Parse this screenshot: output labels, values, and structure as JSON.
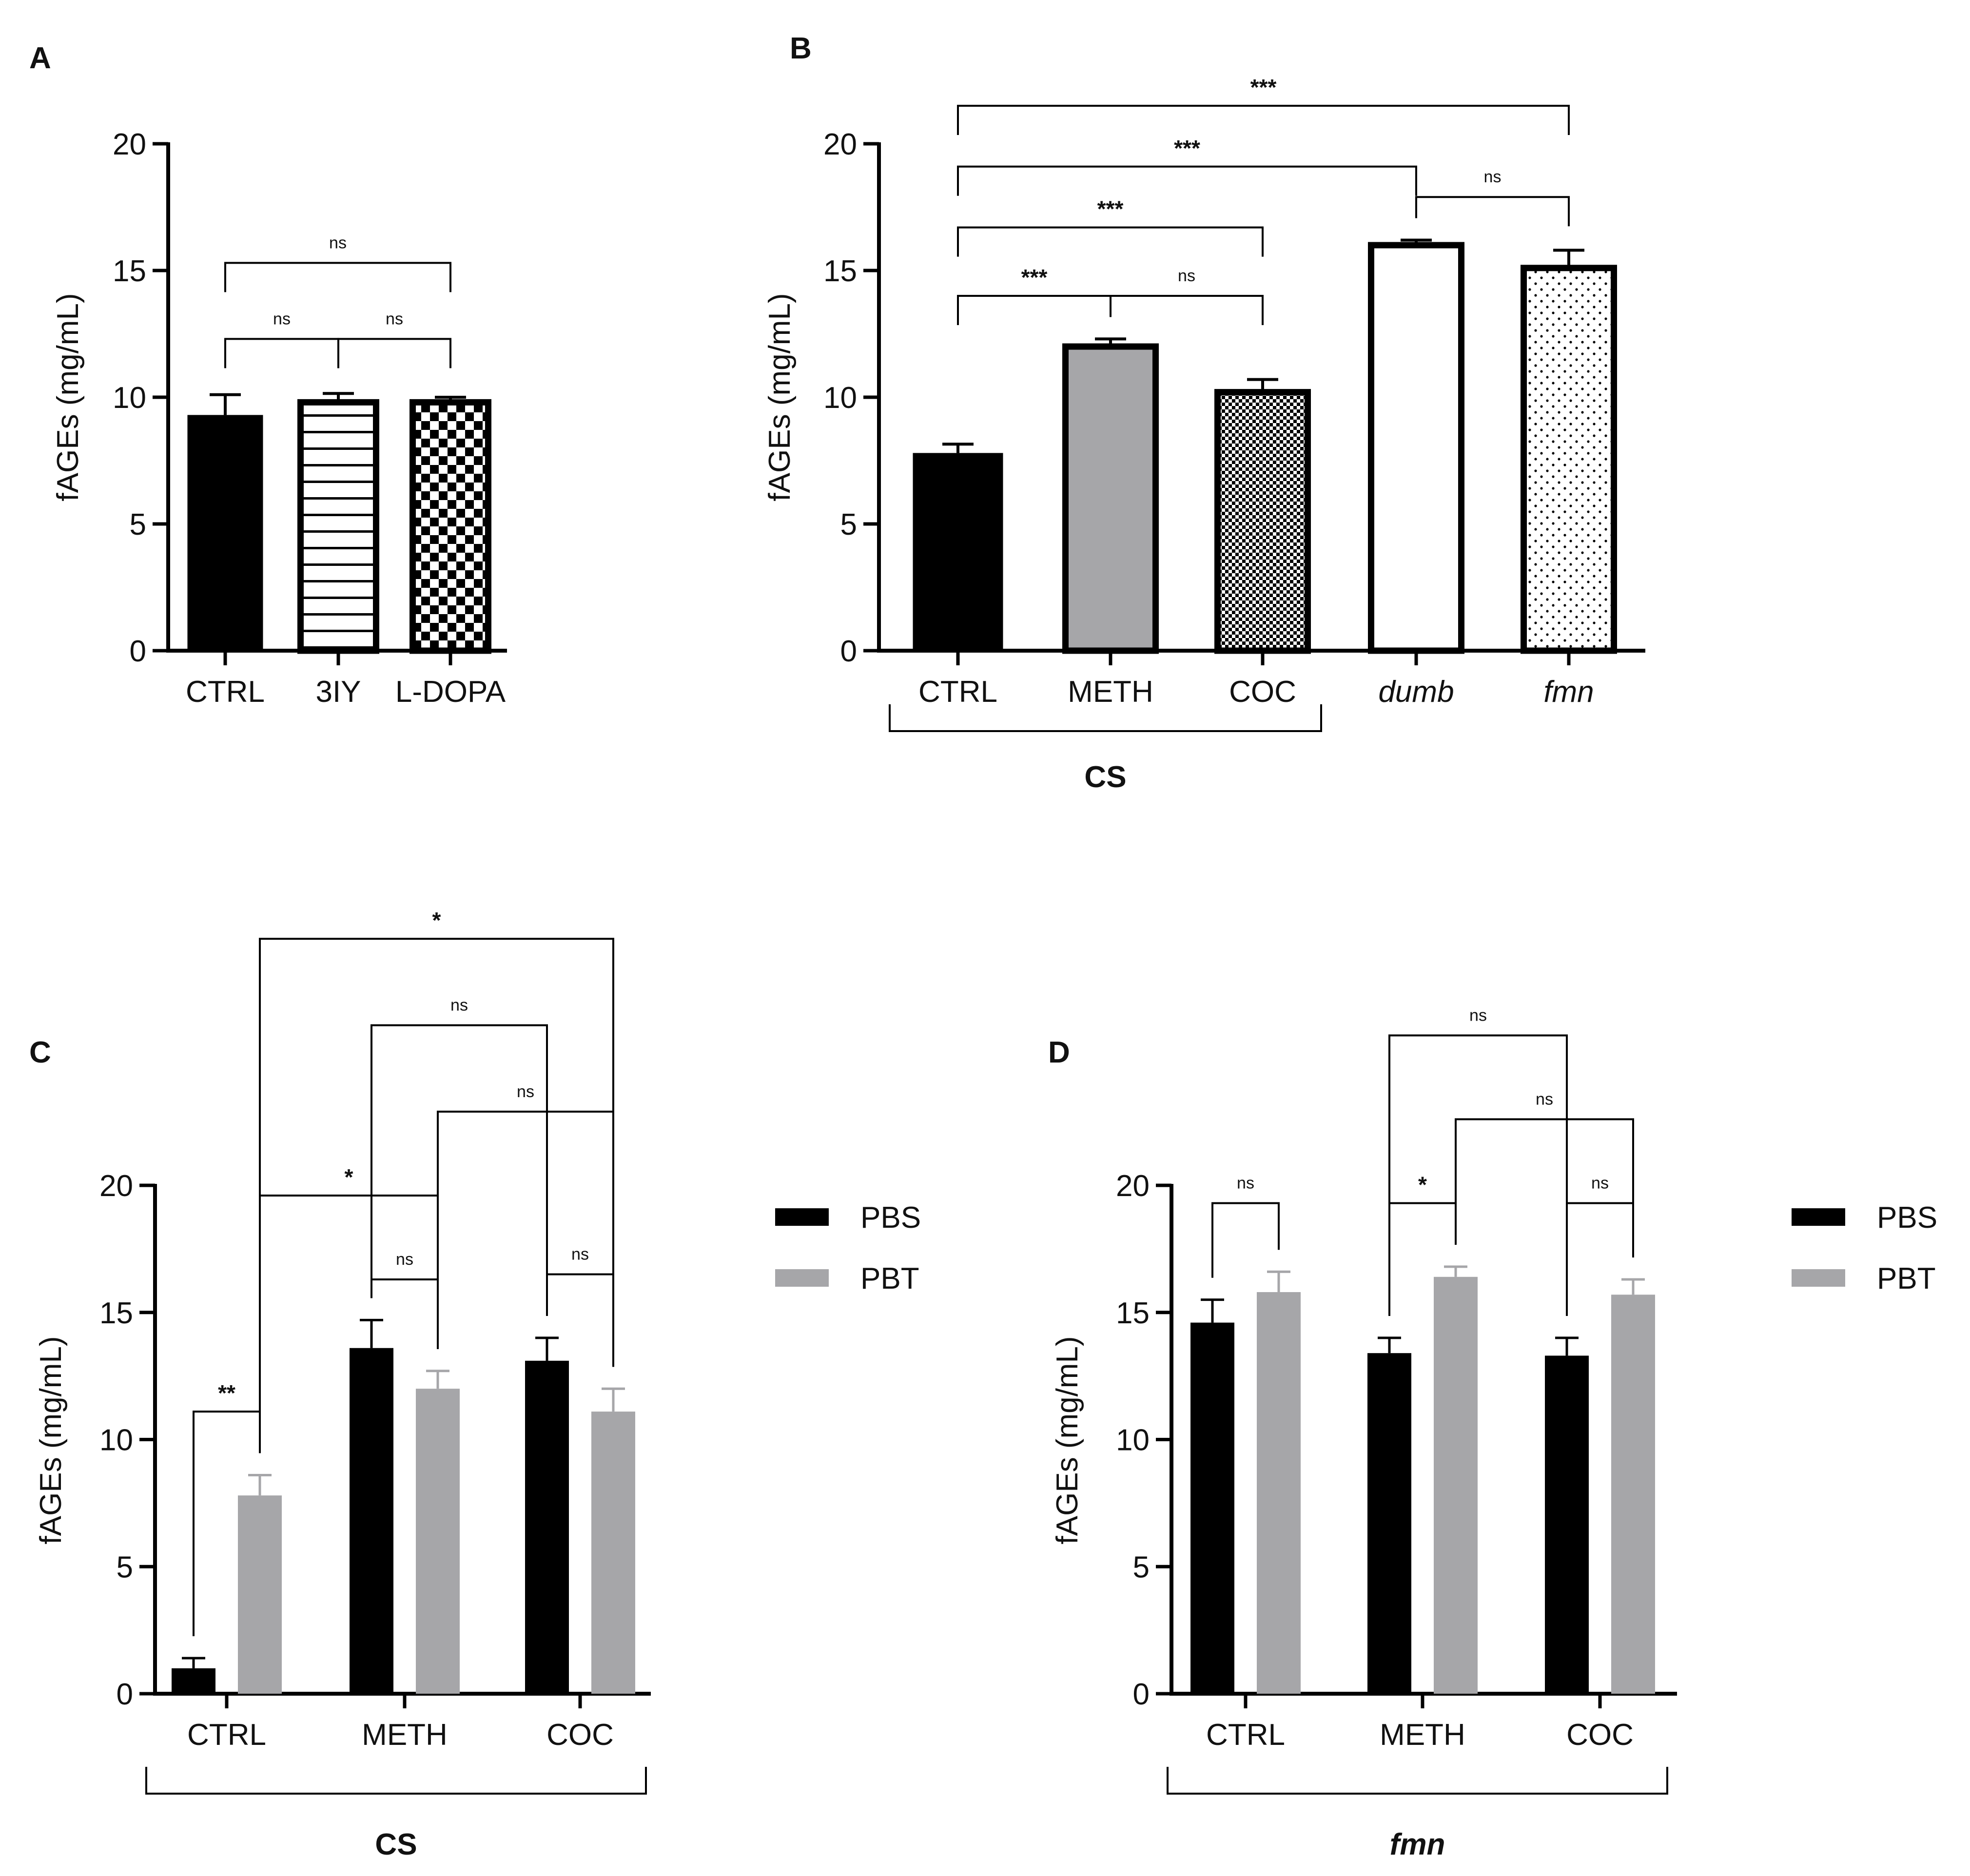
{
  "colors": {
    "black": "#000000",
    "gray": "#a6a6a9",
    "white": "#ffffff",
    "text": "#111111"
  },
  "chart_data": [
    {
      "panel": "A",
      "type": "bar",
      "ylabel": "fAGEs (mg/mL)",
      "ylim": [
        0,
        20
      ],
      "yticks": [
        "0",
        "5",
        "10",
        "15",
        "20"
      ],
      "categories": [
        "CTRL",
        "3IY",
        "L-DOPA"
      ],
      "values": [
        9.3,
        9.8,
        9.8
      ],
      "errors": [
        0.8,
        0.35,
        0.2
      ],
      "styles": [
        "solid-black",
        "horizontal-stripes",
        "checker-large"
      ],
      "comparisons": [
        {
          "a": "CTRL",
          "b": "3IY",
          "label": "ns",
          "y": 12.3
        },
        {
          "a": "3IY",
          "b": "L-DOPA",
          "label": "ns",
          "y": 12.3
        },
        {
          "a": "CTRL",
          "b": "L-DOPA",
          "label": "ns",
          "y": 15.3
        }
      ]
    },
    {
      "panel": "B",
      "type": "bar",
      "ylabel": "fAGEs (mg/mL)",
      "ylim": [
        0,
        20
      ],
      "yticks": [
        "0",
        "5",
        "10",
        "15",
        "20"
      ],
      "categories": [
        "CTRL",
        "METH",
        "COC",
        "dumb",
        "fmn"
      ],
      "italic_categories": [
        "dumb",
        "fmn"
      ],
      "values": [
        7.8,
        12.0,
        10.2,
        16.0,
        15.1
      ],
      "errors": [
        0.35,
        0.3,
        0.5,
        0.2,
        0.7
      ],
      "styles": [
        "solid-black",
        "solid-gray",
        "checker-small",
        "hollow",
        "dots"
      ],
      "group_label": "CS",
      "group_span": [
        "CTRL",
        "COC"
      ],
      "comparisons": [
        {
          "a": "CTRL",
          "b": "METH",
          "label": "***",
          "y": 14.0
        },
        {
          "a": "METH",
          "b": "COC",
          "label": "ns",
          "y": 14.0
        },
        {
          "a": "CTRL",
          "b": "COC",
          "label": "***",
          "y": 16.7
        },
        {
          "a": "dumb",
          "b": "fmn",
          "label": "ns",
          "y": 17.9
        },
        {
          "a": "CTRL",
          "b": "dumb",
          "label": "***",
          "y": 19.1
        },
        {
          "a": "CTRL",
          "b": "fmn",
          "label": "***",
          "y": 21.5
        }
      ]
    },
    {
      "panel": "C",
      "type": "bar",
      "ylabel": "fAGEs (mg/mL)",
      "ylim": [
        0,
        20
      ],
      "yticks": [
        "0",
        "5",
        "10",
        "15",
        "20"
      ],
      "categories": [
        "CTRL",
        "METH",
        "COC"
      ],
      "series": [
        {
          "name": "PBS",
          "values": [
            1.0,
            13.6,
            13.1
          ],
          "errors": [
            0.4,
            1.1,
            0.9
          ]
        },
        {
          "name": "PBT",
          "values": [
            7.8,
            12.0,
            11.1
          ],
          "errors": [
            0.8,
            0.7,
            0.9
          ]
        }
      ],
      "legend": "right",
      "group_label": "CS",
      "group_label_italic": false,
      "comparisons": [
        {
          "a": [
            0,
            0
          ],
          "b": [
            0,
            1
          ],
          "label": "**",
          "y": 11.1
        },
        {
          "a": [
            1,
            0
          ],
          "b": [
            1,
            1
          ],
          "label": "ns",
          "y": 16.3
        },
        {
          "a": [
            2,
            0
          ],
          "b": [
            2,
            1
          ],
          "label": "ns",
          "y": 16.5
        },
        {
          "a": [
            0,
            1
          ],
          "b": [
            1,
            1
          ],
          "label": "*",
          "y": 19.6
        },
        {
          "a": [
            1,
            1
          ],
          "b": [
            2,
            1
          ],
          "label": "ns",
          "y": 22.9
        },
        {
          "a": [
            1,
            0
          ],
          "b": [
            2,
            0
          ],
          "label": "ns",
          "y": 26.3
        },
        {
          "a": [
            0,
            1
          ],
          "b": [
            2,
            1
          ],
          "label": "*",
          "y": 29.7
        }
      ]
    },
    {
      "panel": "D",
      "type": "bar",
      "ylabel": "fAGEs (mg/mL)",
      "ylim": [
        0,
        20
      ],
      "yticks": [
        "0",
        "5",
        "10",
        "15",
        "20"
      ],
      "categories": [
        "CTRL",
        "METH",
        "COC"
      ],
      "series": [
        {
          "name": "PBS",
          "values": [
            14.6,
            13.4,
            13.3
          ],
          "errors": [
            0.9,
            0.6,
            0.7
          ]
        },
        {
          "name": "PBT",
          "values": [
            15.8,
            16.4,
            15.7
          ],
          "errors": [
            0.8,
            0.4,
            0.6
          ]
        }
      ],
      "legend": "right",
      "group_label": "fmn",
      "group_label_italic": true,
      "comparisons": [
        {
          "a": [
            0,
            0
          ],
          "b": [
            0,
            1
          ],
          "label": "ns",
          "y": 19.3
        },
        {
          "a": [
            1,
            0
          ],
          "b": [
            1,
            1
          ],
          "label": "*",
          "y": 19.3
        },
        {
          "a": [
            2,
            0
          ],
          "b": [
            2,
            1
          ],
          "label": "ns",
          "y": 19.3
        },
        {
          "a": [
            1,
            1
          ],
          "b": [
            2,
            1
          ],
          "label": "ns",
          "y": 22.6
        },
        {
          "a": [
            1,
            0
          ],
          "b": [
            2,
            0
          ],
          "label": "ns",
          "y": 25.9
        }
      ]
    }
  ]
}
